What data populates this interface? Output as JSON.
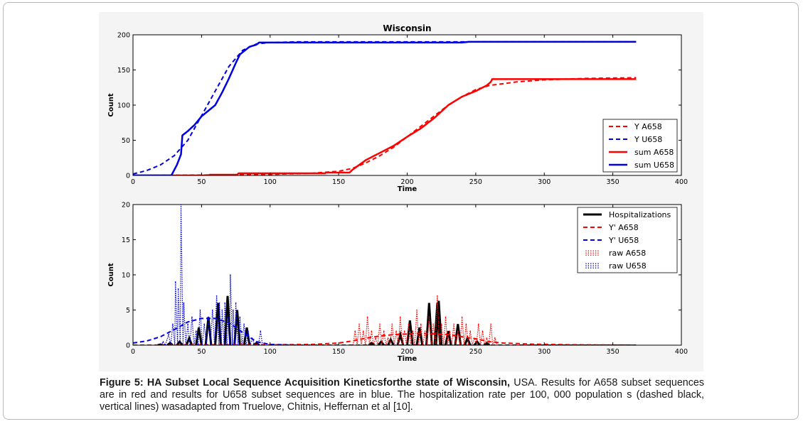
{
  "caption": {
    "bold_part": "Figure 5: HA Subset Local Sequence Acquisition Kineticsforthe state of Wisconsin,",
    "rest": " USA. Results for A658 subset sequences are in red and results for U658 subset sequences are in blue. The hospitalization rate per 100, 000 population s (dashed black, vertical lines) wasadapted from Truelove, Chitnis, Heffernan et al [10]."
  },
  "colors": {
    "red": "#ff0000",
    "blue": "#0000e0",
    "black": "#000000"
  },
  "chart_data": [
    {
      "type": "line",
      "title": "Wisconsin",
      "xlabel": "Time",
      "ylabel": "Count",
      "xlim": [
        0,
        400
      ],
      "ylim": [
        0,
        200
      ],
      "xticks": [
        0,
        50,
        100,
        150,
        200,
        250,
        300,
        350,
        400
      ],
      "yticks": [
        0,
        50,
        100,
        150,
        200
      ],
      "legend_position": "lower-right",
      "series": [
        {
          "name": "Y A658",
          "color": "#ff0000",
          "style": "dashed",
          "width": 2,
          "x": [
            0,
            50,
            100,
            130,
            150,
            160,
            170,
            180,
            190,
            200,
            210,
            220,
            230,
            240,
            250,
            260,
            280,
            300,
            330,
            367
          ],
          "y": [
            0,
            0.5,
            1.5,
            3,
            6,
            10,
            18,
            28,
            40,
            55,
            70,
            85,
            100,
            112,
            122,
            128,
            133,
            136,
            138,
            139
          ]
        },
        {
          "name": "Y U658",
          "color": "#0000e0",
          "style": "dashed",
          "width": 2,
          "x": [
            0,
            10,
            20,
            30,
            40,
            50,
            60,
            70,
            80,
            90,
            100,
            120,
            150,
            200,
            250,
            300,
            367
          ],
          "y": [
            2,
            7,
            15,
            28,
            50,
            85,
            120,
            155,
            178,
            187,
            189,
            190,
            190,
            190,
            190,
            190,
            190
          ]
        },
        {
          "name": "sum A658",
          "color": "#ff0000",
          "style": "solid",
          "width": 2.5,
          "x": [
            0,
            55,
            56,
            76,
            77,
            140,
            141,
            158,
            160,
            165,
            170,
            175,
            180,
            190,
            200,
            210,
            220,
            230,
            240,
            250,
            255,
            258,
            261,
            262,
            300,
            367
          ],
          "y": [
            0,
            0,
            1,
            1,
            3,
            3,
            4,
            4,
            8,
            15,
            22,
            27,
            32,
            42,
            55,
            67,
            82,
            100,
            112,
            120,
            125,
            128,
            133,
            137,
            137,
            137
          ]
        },
        {
          "name": "sum U658",
          "color": "#0000e0",
          "style": "solid",
          "width": 2.5,
          "x": [
            0,
            28,
            32,
            35,
            36,
            40,
            45,
            50,
            55,
            60,
            65,
            70,
            75,
            78,
            85,
            90,
            92,
            100,
            150,
            200,
            240,
            245,
            300,
            367
          ],
          "y": [
            0,
            0,
            15,
            30,
            57,
            63,
            72,
            84,
            92,
            100,
            118,
            138,
            160,
            172,
            183,
            186,
            189,
            189,
            189,
            189,
            189,
            190,
            190,
            190
          ]
        }
      ]
    },
    {
      "type": "line",
      "title": "",
      "xlabel": "Time",
      "ylabel": "Count",
      "xlim": [
        0,
        400
      ],
      "ylim": [
        0,
        20
      ],
      "xticks": [
        0,
        50,
        100,
        150,
        200,
        250,
        300,
        350,
        400
      ],
      "yticks": [
        0,
        5,
        10,
        15,
        20
      ],
      "legend_position": "upper-right",
      "series": [
        {
          "name": "Hospitalizations",
          "color": "#000000",
          "style": "solid",
          "width": 3,
          "kind": "pulses",
          "pulse_half_width": 2,
          "x": [
            20,
            27,
            34,
            41,
            48,
            55,
            62,
            69,
            76,
            83,
            90,
            174,
            181,
            188,
            195,
            202,
            209,
            216,
            222,
            223,
            230,
            237,
            244,
            251,
            258
          ],
          "y": [
            0.1,
            0.3,
            0.5,
            1,
            2.5,
            4,
            6,
            7,
            5,
            2.5,
            0.3,
            0.3,
            0.5,
            0.8,
            1.5,
            3.5,
            2.5,
            6,
            6,
            6.3,
            2,
            3,
            1,
            0.5,
            0.3
          ]
        },
        {
          "name": "Y' A658",
          "color": "#ff0000",
          "style": "dashed",
          "width": 2,
          "x": [
            0,
            50,
            100,
            130,
            150,
            160,
            170,
            180,
            190,
            200,
            210,
            220,
            230,
            240,
            250,
            260,
            270,
            290,
            320,
            367
          ],
          "y": [
            0,
            0.05,
            0.05,
            0.1,
            0.3,
            0.6,
            1.0,
            1.3,
            1.5,
            1.6,
            1.7,
            1.6,
            1.5,
            1.2,
            0.9,
            0.5,
            0.3,
            0.15,
            0.05,
            0
          ]
        },
        {
          "name": "Y' U658",
          "color": "#0000e0",
          "style": "dashed",
          "width": 2,
          "x": [
            0,
            10,
            20,
            30,
            40,
            50,
            60,
            70,
            80,
            90,
            100,
            120,
            367
          ],
          "y": [
            0.3,
            0.6,
            1.2,
            2.2,
            3.3,
            3.8,
            3.8,
            3.2,
            1.8,
            0.5,
            0.1,
            0,
            0
          ]
        },
        {
          "name": "raw A658",
          "color": "#ff0000",
          "style": "dotted",
          "width": 1.2,
          "kind": "spikes",
          "x": [
            162,
            165,
            168,
            171,
            174,
            177,
            180,
            183,
            186,
            189,
            192,
            195,
            198,
            201,
            204,
            207,
            210,
            213,
            216,
            219,
            222,
            225,
            228,
            231,
            234,
            237,
            240,
            243,
            246,
            249,
            252,
            255,
            258,
            261,
            264
          ],
          "y": [
            2,
            3,
            2,
            4,
            2,
            1,
            3,
            2,
            1,
            3,
            2,
            4,
            2,
            3,
            2,
            5,
            3,
            2,
            4,
            3,
            7,
            3,
            4,
            2,
            3,
            2,
            4,
            3,
            2,
            1,
            3,
            2,
            1,
            3,
            1
          ]
        },
        {
          "name": "raw U658",
          "color": "#0000e0",
          "style": "dotted",
          "width": 1.2,
          "kind": "spikes",
          "x": [
            22,
            26,
            29,
            31,
            33,
            35,
            37,
            40,
            43,
            46,
            49,
            52,
            55,
            58,
            61,
            63,
            65,
            67,
            69,
            71,
            73,
            75,
            78,
            81,
            84,
            87,
            90,
            93
          ],
          "y": [
            0.5,
            1.5,
            3,
            9,
            8,
            20,
            6,
            3,
            4,
            2,
            5,
            3,
            4,
            5,
            7,
            6,
            5,
            6,
            4,
            10,
            5,
            6,
            4,
            3,
            2,
            1,
            0.5,
            2
          ]
        }
      ]
    }
  ]
}
